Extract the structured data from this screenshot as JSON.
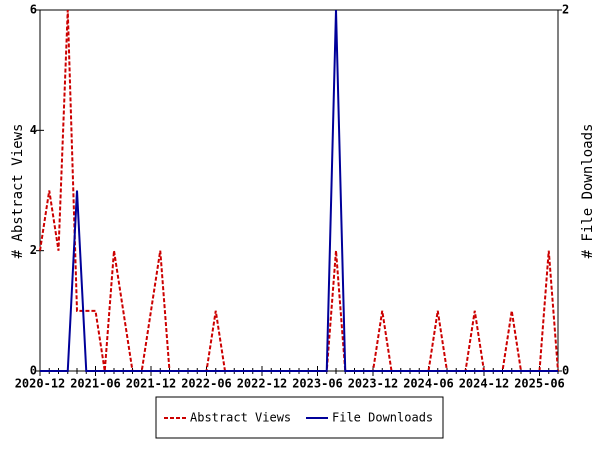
{
  "chart_data": {
    "type": "line",
    "categories": [
      "2020-12",
      null,
      null,
      null,
      null,
      null,
      "2021-06",
      null,
      null,
      null,
      null,
      null,
      "2021-12",
      null,
      null,
      null,
      null,
      null,
      "2022-06",
      null,
      null,
      null,
      null,
      null,
      "2022-12",
      null,
      null,
      null,
      null,
      null,
      "2023-06",
      null,
      null,
      null,
      null,
      null,
      "2023-12",
      null,
      null,
      null,
      null,
      null,
      "2024-06",
      null,
      null,
      null,
      null,
      null,
      "2024-12",
      null,
      null,
      null,
      null,
      null,
      "2025-06",
      null,
      null
    ],
    "series": [
      {
        "name": "Abstract Views",
        "color": "#cc0000",
        "dash": true,
        "axis": "y",
        "values": [
          2,
          3,
          2,
          6,
          1,
          1,
          1,
          0,
          2,
          1,
          0,
          0,
          1,
          2,
          0,
          0,
          0,
          0,
          0,
          1,
          0,
          0,
          0,
          0,
          0,
          0,
          0,
          0,
          0,
          0,
          0,
          0,
          2,
          0,
          0,
          0,
          0,
          1,
          0,
          0,
          0,
          0,
          0,
          1,
          0,
          0,
          0,
          1,
          0,
          0,
          0,
          1,
          0,
          0,
          0,
          2,
          0
        ]
      },
      {
        "name": "File Downloads",
        "color": "#000099",
        "dash": false,
        "axis": "y2",
        "values": [
          0,
          0,
          0,
          0,
          1,
          0,
          0,
          0,
          0,
          0,
          0,
          0,
          0,
          0,
          0,
          0,
          0,
          0,
          0,
          0,
          0,
          0,
          0,
          0,
          0,
          0,
          0,
          0,
          0,
          0,
          0,
          0,
          2,
          0,
          0,
          0,
          0,
          0,
          0,
          0,
          0,
          0,
          0,
          0,
          0,
          0,
          0,
          0,
          0,
          0,
          0,
          0,
          0,
          0,
          0,
          0,
          0
        ]
      }
    ],
    "ylabel": "# Abstract Views",
    "y2label": "# File Downloads",
    "ylim": [
      0,
      6
    ],
    "yticks": [
      0,
      2,
      4,
      6
    ],
    "y2lim": [
      0,
      2
    ],
    "y2ticks": [
      0,
      2
    ]
  }
}
